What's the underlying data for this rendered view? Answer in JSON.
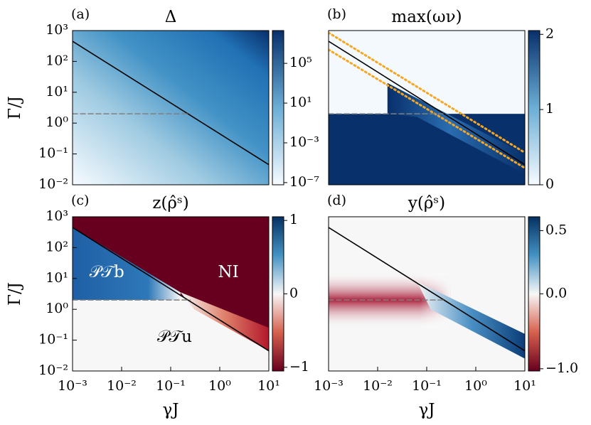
{
  "chart_data": [
    {
      "type": "heatmap",
      "panel_label": "(a)",
      "title": "Δ",
      "ylabel": "Γ/J",
      "xscale": "log",
      "yscale": "log",
      "xlim": [
        0.001,
        10
      ],
      "ylim": [
        0.01,
        1000
      ],
      "yticks": [
        {
          "value": 0.01,
          "label": "10⁻²"
        },
        {
          "value": 0.1,
          "label": "10⁻¹"
        },
        {
          "value": 1,
          "label": "10⁰"
        },
        {
          "value": 10,
          "label": "10¹"
        },
        {
          "value": 100,
          "label": "10²"
        },
        {
          "value": 1000,
          "label": "10³"
        }
      ],
      "colorbar": {
        "cmap": "Blues",
        "scale": "log",
        "clim": [
          6e-08,
          200000000.0
        ],
        "ticks": [
          {
            "value": 1e-07,
            "label": "10⁻⁷"
          },
          {
            "value": 0.001,
            "label": "10⁻³"
          },
          {
            "value": 10,
            "label": "10¹"
          },
          {
            "value": 100000,
            "label": "10⁵"
          }
        ]
      },
      "lines": [
        {
          "x": [
            0.001,
            10
          ],
          "y": [
            450,
            0.045
          ],
          "color": "#000000",
          "style": "solid"
        },
        {
          "x": [
            0.001,
            0.25
          ],
          "y": [
            2,
            2
          ],
          "color": "#808080",
          "style": "dashed"
        }
      ]
    },
    {
      "type": "heatmap",
      "panel_label": "(b)",
      "title": "max(ων)",
      "xscale": "log",
      "yscale": "log",
      "xlim": [
        0.001,
        10
      ],
      "ylim": [
        0.01,
        1000
      ],
      "colorbar": {
        "cmap": "Blues",
        "scale": "linear",
        "clim": [
          0,
          2.05
        ],
        "ticks": [
          0,
          1,
          2
        ]
      },
      "lines": [
        {
          "x": [
            0.001,
            10
          ],
          "y": [
            450,
            0.045
          ],
          "color": "#000000",
          "style": "solid"
        },
        {
          "x": [
            0.001,
            10
          ],
          "y": [
            850,
            0.11
          ],
          "color": "#f5a623",
          "style": "dotted"
        },
        {
          "x": [
            0.001,
            10
          ],
          "y": [
            240,
            0.035
          ],
          "color": "#f5a623",
          "style": "dotted"
        },
        {
          "x": [
            0.001,
            0.23
          ],
          "y": [
            2,
            2
          ],
          "color": "#808080",
          "style": "dashed"
        }
      ]
    },
    {
      "type": "heatmap",
      "panel_label": "(c)",
      "title": "z(ρ̂ˢ)",
      "ylabel": "Γ/J",
      "xlabel": "γJ",
      "xscale": "log",
      "yscale": "log",
      "xlim": [
        0.001,
        10
      ],
      "ylim": [
        0.01,
        1000
      ],
      "xticks": [
        {
          "value": 0.001,
          "label": "10⁻³"
        },
        {
          "value": 0.01,
          "label": "10⁻²"
        },
        {
          "value": 0.1,
          "label": "10⁻¹"
        },
        {
          "value": 1,
          "label": "10⁰"
        },
        {
          "value": 10,
          "label": "10¹"
        }
      ],
      "yticks": [
        {
          "value": 0.01,
          "label": "10⁻²"
        },
        {
          "value": 0.1,
          "label": "10⁻¹"
        },
        {
          "value": 1,
          "label": "10⁰"
        },
        {
          "value": 10,
          "label": "10¹"
        },
        {
          "value": 100,
          "label": "10²"
        },
        {
          "value": 1000,
          "label": "10³"
        }
      ],
      "colorbar": {
        "cmap": "RdBu",
        "scale": "linear",
        "clim": [
          -1.05,
          1.05
        ],
        "ticks": [
          {
            "value": -1,
            "label": "−1"
          },
          0,
          1
        ]
      },
      "annotations": [
        {
          "text": "𝒫𝒯b",
          "x": 0.005,
          "y": 15,
          "color": "#ffffff"
        },
        {
          "text": "NI",
          "x": 1.5,
          "y": 15,
          "color": "#ffffff"
        },
        {
          "text": "𝒫𝒯u",
          "x": 0.12,
          "y": 0.12,
          "color": "#000000"
        }
      ],
      "lines": [
        {
          "x": [
            0.001,
            10
          ],
          "y": [
            450,
            0.045
          ],
          "color": "#000000",
          "style": "solid"
        },
        {
          "x": [
            0.001,
            0.25
          ],
          "y": [
            2,
            2
          ],
          "color": "#808080",
          "style": "dashed"
        }
      ]
    },
    {
      "type": "heatmap",
      "panel_label": "(d)",
      "title": "y(ρ̂ˢ)",
      "xlabel": "γJ",
      "xscale": "log",
      "yscale": "log",
      "xlim": [
        0.001,
        10
      ],
      "ylim": [
        0.01,
        1000
      ],
      "xticks": [
        {
          "value": 0.001,
          "label": "10⁻³"
        },
        {
          "value": 0.01,
          "label": "10⁻²"
        },
        {
          "value": 0.1,
          "label": "10⁻¹"
        },
        {
          "value": 1,
          "label": "10⁰"
        },
        {
          "value": 10,
          "label": "10¹"
        }
      ],
      "colorbar": {
        "cmap": "RdBu",
        "scale": "two-slope",
        "clim": [
          -1.03,
          0.61
        ],
        "ticks": [
          {
            "value": -1,
            "label": "−1.0"
          },
          {
            "value": 0,
            "label": "0.0"
          },
          0.5
        ]
      },
      "lines": [
        {
          "x": [
            0.001,
            10
          ],
          "y": [
            450,
            0.045
          ],
          "color": "#000000",
          "style": "solid"
        },
        {
          "x": [
            0.001,
            0.23
          ],
          "y": [
            2,
            2
          ],
          "color": "#808080",
          "style": "dashed"
        }
      ]
    }
  ]
}
